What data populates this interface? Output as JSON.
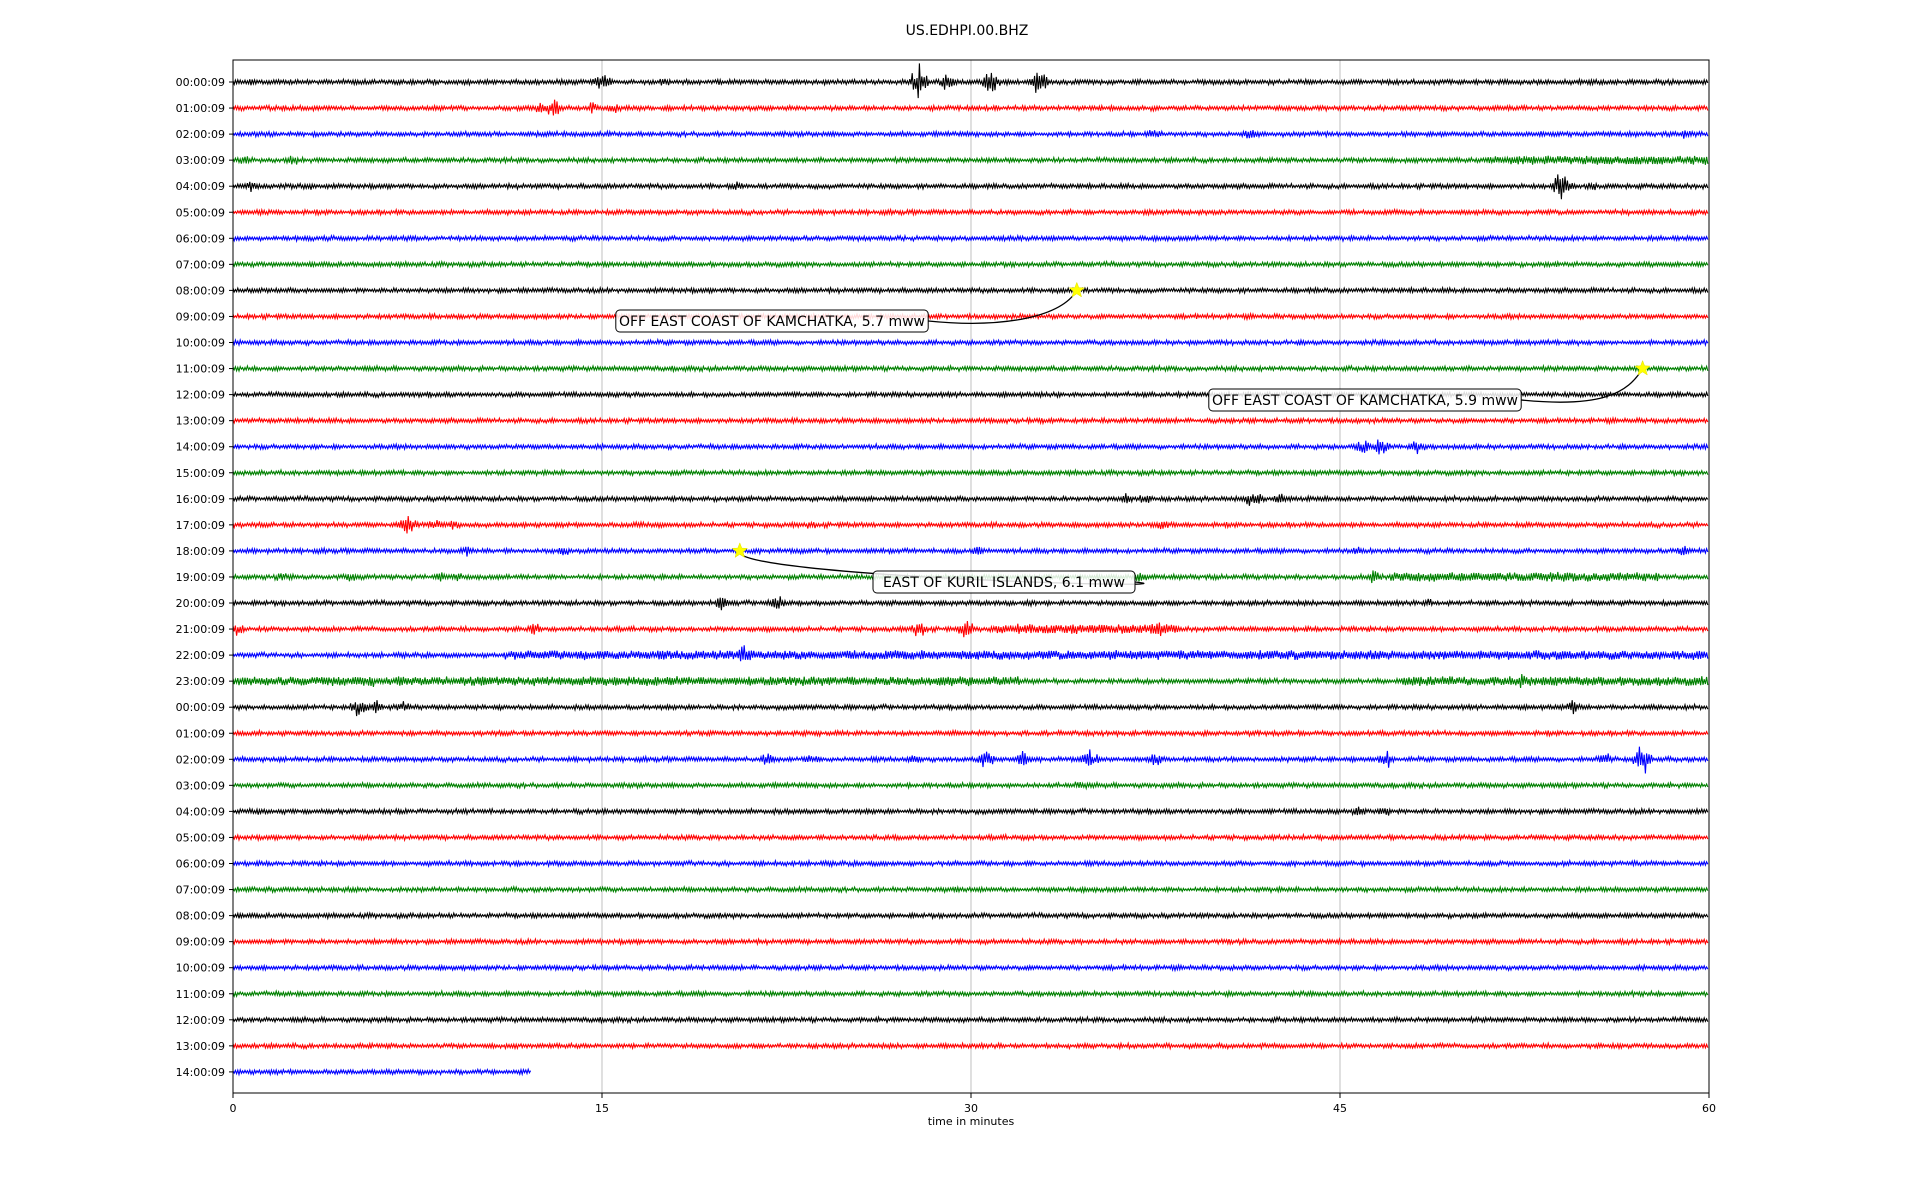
{
  "chart_data": {
    "type": "line",
    "title": "US.EDHPI.00.BHZ",
    "xlabel": "time in minutes",
    "ylabel": "",
    "xlim": [
      0,
      60
    ],
    "x_ticks": [
      "0",
      "15",
      "30",
      "45",
      "60"
    ],
    "x_tick_values": [
      0,
      15,
      30,
      45,
      60
    ],
    "grid": "vertical lines at 15, 30, 45",
    "color_cycle": [
      "#000000",
      "#ff0000",
      "#0000ff",
      "#008000"
    ],
    "row_labels": [
      "00:00:09",
      "01:00:09",
      "02:00:09",
      "03:00:09",
      "04:00:09",
      "05:00:09",
      "06:00:09",
      "07:00:09",
      "08:00:09",
      "09:00:09",
      "10:00:09",
      "11:00:09",
      "12:00:09",
      "13:00:09",
      "14:00:09",
      "15:00:09",
      "16:00:09",
      "17:00:09",
      "18:00:09",
      "19:00:09",
      "20:00:09",
      "21:00:09",
      "22:00:09",
      "23:00:09",
      "00:00:09",
      "01:00:09",
      "02:00:09",
      "03:00:09",
      "04:00:09",
      "05:00:09",
      "06:00:09",
      "07:00:09",
      "08:00:09",
      "09:00:09",
      "10:00:09",
      "11:00:09",
      "12:00:09",
      "13:00:09",
      "14:00:09"
    ],
    "last_row_end_minute": 12.1,
    "bursts": [
      {
        "row": 0,
        "minute": 0.8,
        "amp": 5
      },
      {
        "row": 0,
        "minute": 8.1,
        "amp": 4
      },
      {
        "row": 0,
        "minute": 15.0,
        "amp": 10
      },
      {
        "row": 0,
        "minute": 17.5,
        "amp": 6
      },
      {
        "row": 0,
        "minute": 27.9,
        "amp": 20
      },
      {
        "row": 0,
        "minute": 29.1,
        "amp": 10
      },
      {
        "row": 0,
        "minute": 30.8,
        "amp": 13
      },
      {
        "row": 0,
        "minute": 32.8,
        "amp": 18
      },
      {
        "row": 1,
        "minute": 12.5,
        "amp": 7
      },
      {
        "row": 1,
        "minute": 13.0,
        "amp": 11
      },
      {
        "row": 1,
        "minute": 14.6,
        "amp": 6
      },
      {
        "row": 1,
        "minute": 15.5,
        "amp": 7
      },
      {
        "row": 1,
        "minute": 37.5,
        "amp": 4
      },
      {
        "row": 2,
        "minute": 37.4,
        "amp": 7
      },
      {
        "row": 2,
        "minute": 41.4,
        "amp": 7
      },
      {
        "row": 2,
        "minute": 59.0,
        "amp": 5
      },
      {
        "row": 3,
        "minute": 0.5,
        "amp": 6
      },
      {
        "row": 3,
        "minute": 2.4,
        "amp": 6
      },
      {
        "row": 3,
        "minute": 59.8,
        "amp": 4
      },
      {
        "row": 4,
        "minute": 0.8,
        "amp": 6
      },
      {
        "row": 4,
        "minute": 3.0,
        "amp": 6
      },
      {
        "row": 4,
        "minute": 20.5,
        "amp": 5
      },
      {
        "row": 4,
        "minute": 54.0,
        "amp": 16
      },
      {
        "row": 4,
        "minute": 55.3,
        "amp": 5
      },
      {
        "row": 5,
        "minute": 1.1,
        "amp": 3
      },
      {
        "row": 8,
        "minute": 34.2,
        "amp": 3
      },
      {
        "row": 12,
        "minute": 7.0,
        "amp": 3
      },
      {
        "row": 14,
        "minute": 46.0,
        "amp": 9
      },
      {
        "row": 14,
        "minute": 46.7,
        "amp": 13
      },
      {
        "row": 14,
        "minute": 48.1,
        "amp": 9
      },
      {
        "row": 15,
        "minute": 10.1,
        "amp": 3
      },
      {
        "row": 16,
        "minute": 36.3,
        "amp": 6
      },
      {
        "row": 16,
        "minute": 37.1,
        "amp": 6
      },
      {
        "row": 16,
        "minute": 41.5,
        "amp": 11
      },
      {
        "row": 16,
        "minute": 42.6,
        "amp": 6
      },
      {
        "row": 17,
        "minute": 7.1,
        "amp": 14
      },
      {
        "row": 17,
        "minute": 8.2,
        "amp": 6
      },
      {
        "row": 17,
        "minute": 8.9,
        "amp": 6
      },
      {
        "row": 17,
        "minute": 16.5,
        "amp": 5
      },
      {
        "row": 17,
        "minute": 23.5,
        "amp": 5
      },
      {
        "row": 17,
        "minute": 37.7,
        "amp": 7
      },
      {
        "row": 18,
        "minute": 9.5,
        "amp": 6
      },
      {
        "row": 18,
        "minute": 13.5,
        "amp": 5
      },
      {
        "row": 18,
        "minute": 30.3,
        "amp": 6
      },
      {
        "row": 18,
        "minute": 45.7,
        "amp": 5
      },
      {
        "row": 18,
        "minute": 59.0,
        "amp": 7
      },
      {
        "row": 19,
        "minute": 2.0,
        "amp": 6
      },
      {
        "row": 19,
        "minute": 4.8,
        "amp": 5
      },
      {
        "row": 19,
        "minute": 8.4,
        "amp": 6
      },
      {
        "row": 19,
        "minute": 9.1,
        "amp": 5
      },
      {
        "row": 19,
        "minute": 36.9,
        "amp": 7
      },
      {
        "row": 19,
        "minute": 46.4,
        "amp": 9
      },
      {
        "row": 19,
        "minute": 55.8,
        "amp": 5
      },
      {
        "row": 20,
        "minute": 19.9,
        "amp": 8
      },
      {
        "row": 20,
        "minute": 22.1,
        "amp": 9
      },
      {
        "row": 20,
        "minute": 32.3,
        "amp": 5
      },
      {
        "row": 20,
        "minute": 48.6,
        "amp": 5
      },
      {
        "row": 21,
        "minute": 0.1,
        "amp": 8
      },
      {
        "row": 21,
        "minute": 12.3,
        "amp": 7
      },
      {
        "row": 21,
        "minute": 27.9,
        "amp": 10
      },
      {
        "row": 21,
        "minute": 29.8,
        "amp": 11
      },
      {
        "row": 21,
        "minute": 32.0,
        "amp": 8
      },
      {
        "row": 21,
        "minute": 37.6,
        "amp": 11
      },
      {
        "row": 22,
        "minute": 20.8,
        "amp": 14
      },
      {
        "row": 22,
        "minute": 35.0,
        "amp": 5
      },
      {
        "row": 22,
        "minute": 54.6,
        "amp": 5
      },
      {
        "row": 23,
        "minute": 5.8,
        "amp": 7
      },
      {
        "row": 23,
        "minute": 49.3,
        "amp": 6
      },
      {
        "row": 23,
        "minute": 52.4,
        "amp": 9
      },
      {
        "row": 24,
        "minute": 5.1,
        "amp": 11
      },
      {
        "row": 24,
        "minute": 5.8,
        "amp": 9
      },
      {
        "row": 24,
        "minute": 6.9,
        "amp": 7
      },
      {
        "row": 24,
        "minute": 54.5,
        "amp": 8
      },
      {
        "row": 26,
        "minute": 21.8,
        "amp": 8
      },
      {
        "row": 26,
        "minute": 23.5,
        "amp": 6
      },
      {
        "row": 26,
        "minute": 27.7,
        "amp": 6
      },
      {
        "row": 26,
        "minute": 30.6,
        "amp": 11
      },
      {
        "row": 26,
        "minute": 32.1,
        "amp": 11
      },
      {
        "row": 26,
        "minute": 34.8,
        "amp": 11
      },
      {
        "row": 26,
        "minute": 37.5,
        "amp": 8
      },
      {
        "row": 26,
        "minute": 46.9,
        "amp": 10
      },
      {
        "row": 26,
        "minute": 55.8,
        "amp": 7
      },
      {
        "row": 26,
        "minute": 57.3,
        "amp": 17
      },
      {
        "row": 27,
        "minute": 34.4,
        "amp": 6
      },
      {
        "row": 28,
        "minute": 1.0,
        "amp": 4
      },
      {
        "row": 28,
        "minute": 45.8,
        "amp": 7
      },
      {
        "row": 28,
        "minute": 46.8,
        "amp": 6
      },
      {
        "row": 31,
        "minute": 29.4,
        "amp": 3
      },
      {
        "row": 33,
        "minute": 40.5,
        "amp": 2
      }
    ],
    "noisy_segments": [
      {
        "row": 3,
        "from": 51.0,
        "to": 60.0
      },
      {
        "row": 19,
        "from": 47.0,
        "to": 58.0
      },
      {
        "row": 22,
        "from": 11.0,
        "to": 60.0
      },
      {
        "row": 23,
        "from": 0.0,
        "to": 32.0
      },
      {
        "row": 23,
        "from": 47.5,
        "to": 60.0
      },
      {
        "row": 21,
        "from": 31.0,
        "to": 38.5
      }
    ],
    "annotations": [
      {
        "text": "OFF EAST COAST OF KAMCHATKA, 5.7 mww",
        "row": 8,
        "minute": 34.3
      },
      {
        "text": "OFF EAST COAST OF KAMCHATKA, 5.9 mww",
        "row": 11,
        "minute": 57.3
      },
      {
        "text": "EAST OF KURIL ISLANDS, 6.1 mww",
        "row": 18,
        "minute": 20.6
      }
    ]
  }
}
